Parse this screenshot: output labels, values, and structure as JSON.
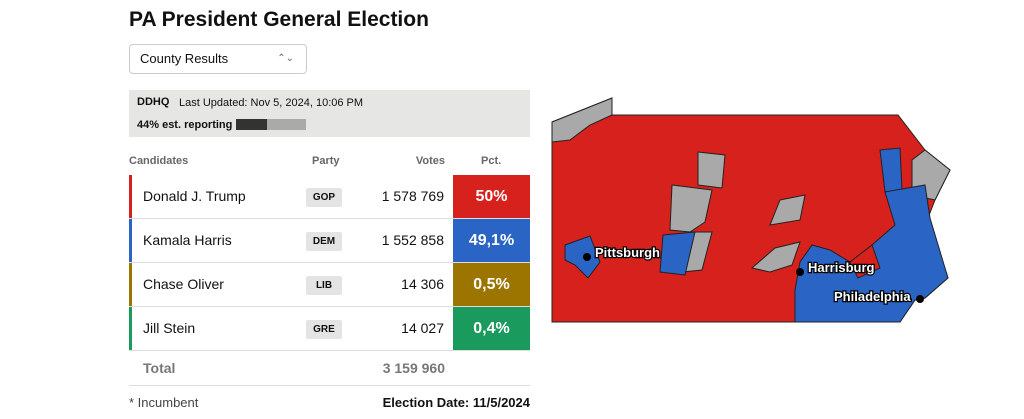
{
  "header": {
    "title": "PA President General Election"
  },
  "dropdown": {
    "label": "County Results"
  },
  "status": {
    "source": "DDHQ",
    "last_updated": "Last Updated: Nov 5, 2024, 10:06 PM",
    "reporting": "44% est. reporting",
    "reporting_percent": 44
  },
  "table": {
    "headers": [
      "Candidates",
      "Party",
      "Votes",
      "Pct."
    ],
    "rows": [
      {
        "name": "Donald J. Trump",
        "party": "GOP",
        "votes": "1 578 769",
        "pct": "50%",
        "color": "#d7211c"
      },
      {
        "name": "Kamala Harris",
        "party": "DEM",
        "votes": "1 552 858",
        "pct": "49,1%",
        "color": "#2a64c5"
      },
      {
        "name": "Chase Oliver",
        "party": "LIB",
        "votes": "14 306",
        "pct": "0,5%",
        "color": "#9c7500"
      },
      {
        "name": "Jill Stein",
        "party": "GRE",
        "votes": "14 027",
        "pct": "0,4%",
        "color": "#1b9a5d"
      }
    ],
    "total": {
      "label": "Total",
      "votes": "3 159 960"
    }
  },
  "footer": {
    "note": "* Incumbent",
    "election_date": "Election Date: 11/5/2024"
  },
  "map": {
    "cities": [
      "Pittsburgh",
      "Harrisburg",
      "Philadelphia"
    ]
  }
}
